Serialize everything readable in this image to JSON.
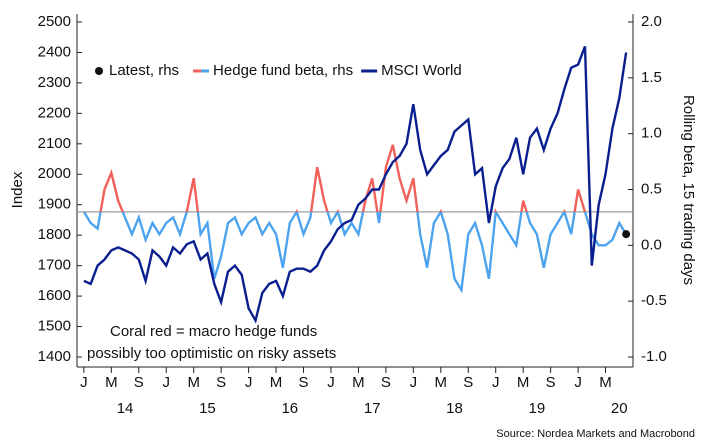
{
  "chart_data": {
    "type": "line",
    "y_label": "Index",
    "y2_label": "Rolling beta, 15 trading days",
    "annotation": [
      "Coral red = macro hedge funds",
      "possibly too optimistic on risky assets"
    ],
    "source": "Source: Nordea Markets and Macrobond",
    "legend": "upper left",
    "x": [
      "2014-01",
      "2014-02",
      "2014-03",
      "2014-04",
      "2014-05",
      "2014-06",
      "2014-07",
      "2014-08",
      "2014-09",
      "2014-10",
      "2014-11",
      "2014-12",
      "2015-01",
      "2015-02",
      "2015-03",
      "2015-04",
      "2015-05",
      "2015-06",
      "2015-07",
      "2015-08",
      "2015-09",
      "2015-10",
      "2015-11",
      "2015-12",
      "2016-01",
      "2016-02",
      "2016-03",
      "2016-04",
      "2016-05",
      "2016-06",
      "2016-07",
      "2016-08",
      "2016-09",
      "2016-10",
      "2016-11",
      "2016-12",
      "2017-01",
      "2017-02",
      "2017-03",
      "2017-04",
      "2017-05",
      "2017-06",
      "2017-07",
      "2017-08",
      "2017-09",
      "2017-10",
      "2017-11",
      "2017-12",
      "2018-01",
      "2018-02",
      "2018-03",
      "2018-04",
      "2018-05",
      "2018-06",
      "2018-07",
      "2018-08",
      "2018-09",
      "2018-10",
      "2018-11",
      "2018-12",
      "2019-01",
      "2019-02",
      "2019-03",
      "2019-04",
      "2019-05",
      "2019-06",
      "2019-07",
      "2019-08",
      "2019-09",
      "2019-10",
      "2019-11",
      "2019-12",
      "2020-01",
      "2020-02",
      "2020-03",
      "2020-04",
      "2020-05",
      "2020-06",
      "2020-07",
      "2020-08"
    ],
    "xlim": [
      "2013-12",
      "2020-09"
    ],
    "xticks": [
      {
        "value": "2014-01",
        "label": "J"
      },
      {
        "value": "2014-05",
        "label": "M"
      },
      {
        "value": "2014-09",
        "label": "S"
      },
      {
        "value": "2015-01",
        "label": "J"
      },
      {
        "value": "2015-05",
        "label": "M"
      },
      {
        "value": "2015-09",
        "label": "S"
      },
      {
        "value": "2016-01",
        "label": "J"
      },
      {
        "value": "2016-05",
        "label": "M"
      },
      {
        "value": "2016-09",
        "label": "S"
      },
      {
        "value": "2017-01",
        "label": "J"
      },
      {
        "value": "2017-05",
        "label": "M"
      },
      {
        "value": "2017-09",
        "label": "S"
      },
      {
        "value": "2018-01",
        "label": "J"
      },
      {
        "value": "2018-05",
        "label": "M"
      },
      {
        "value": "2018-09",
        "label": "S"
      },
      {
        "value": "2019-01",
        "label": "J"
      },
      {
        "value": "2019-05",
        "label": "M"
      },
      {
        "value": "2019-09",
        "label": "S"
      },
      {
        "value": "2020-01",
        "label": "J"
      },
      {
        "value": "2020-05",
        "label": "M"
      }
    ],
    "year_labels": [
      {
        "value": "2014",
        "label": "14"
      },
      {
        "value": "2015",
        "label": "15"
      },
      {
        "value": "2016",
        "label": "16"
      },
      {
        "value": "2017",
        "label": "17"
      },
      {
        "value": "2018",
        "label": "18"
      },
      {
        "value": "2019",
        "label": "19"
      },
      {
        "value": "2020",
        "label": "20"
      }
    ],
    "ylim": [
      1400,
      2500
    ],
    "yticks": [
      1400,
      1500,
      1600,
      1700,
      1800,
      1900,
      2000,
      2100,
      2200,
      2300,
      2400,
      2500
    ],
    "y2lim": [
      -1,
      2
    ],
    "y2ticks": [
      {
        "value": -1,
        "label": "-1.0"
      },
      -0.5,
      {
        "value": 0,
        "label": "0.0"
      },
      0.5,
      {
        "value": 1,
        "label": "1.0"
      },
      1.5,
      {
        "value": 2,
        "label": "2.0"
      }
    ],
    "threshold": 0.3,
    "threshold_color": "#888888",
    "series": [
      {
        "name": "Hedge fund beta, rhs",
        "axis": "y2",
        "color": "#4da3ee",
        "highlight_color": "#f2605a",
        "values": [
          0.3,
          0.2,
          0.15,
          0.5,
          0.65,
          0.4,
          0.25,
          0.1,
          0.25,
          0.05,
          0.2,
          0.1,
          0.2,
          0.25,
          0.1,
          0.3,
          0.6,
          0.1,
          0.2,
          -0.3,
          -0.1,
          0.2,
          0.25,
          0.1,
          0.2,
          0.25,
          0.1,
          0.2,
          0.1,
          -0.2,
          0.2,
          0.3,
          0.1,
          0.25,
          0.7,
          0.4,
          0.2,
          0.3,
          0.1,
          0.2,
          0.1,
          0.4,
          0.6,
          0.2,
          0.7,
          0.9,
          0.6,
          0.4,
          0.6,
          0.1,
          -0.2,
          0.2,
          0.3,
          0.1,
          -0.3,
          -0.4,
          0.1,
          0.2,
          0,
          -0.3,
          0.3,
          0.2,
          0.1,
          0,
          0.4,
          0.2,
          0.1,
          -0.2,
          0.1,
          0.2,
          0.3,
          0.1,
          0.5,
          0.3,
          0.1,
          0,
          0,
          0.05,
          0.2,
          0.1
        ]
      },
      {
        "name": "MSCI World",
        "color": "#0a1f8f",
        "values": [
          1650,
          1640,
          1700,
          1720,
          1750,
          1760,
          1750,
          1740,
          1720,
          1650,
          1750,
          1730,
          1700,
          1760,
          1740,
          1770,
          1780,
          1720,
          1740,
          1640,
          1580,
          1680,
          1700,
          1670,
          1560,
          1520,
          1610,
          1640,
          1650,
          1600,
          1680,
          1690,
          1690,
          1680,
          1700,
          1750,
          1780,
          1820,
          1840,
          1850,
          1900,
          1920,
          1950,
          1950,
          2000,
          2040,
          2060,
          2100,
          2230,
          2080,
          2000,
          2030,
          2060,
          2080,
          2140,
          2160,
          2180,
          2000,
          2020,
          1840,
          1960,
          2020,
          2050,
          2120,
          2000,
          2120,
          2150,
          2080,
          2150,
          2200,
          2280,
          2350,
          2360,
          2420,
          1700,
          1900,
          2000,
          2150,
          2250,
          2400
        ]
      }
    ],
    "latest": {
      "name": "Latest, rhs",
      "axis": "y2",
      "color": "#111111",
      "x": "2020-08",
      "value": 0.1
    }
  }
}
